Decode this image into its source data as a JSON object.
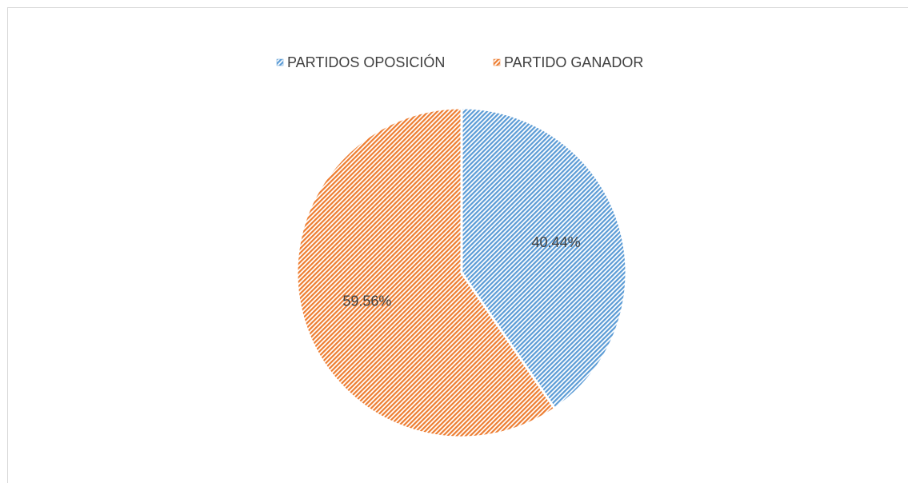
{
  "chart_data": {
    "type": "pie",
    "categories": [
      "PARTIDOS OPOSICIÓN",
      "PARTIDO GANADOR"
    ],
    "values": [
      40.44,
      59.56
    ],
    "value_labels": [
      "40.44%",
      "59.56%"
    ],
    "colors": [
      "#5b9bd5",
      "#ed7d31"
    ],
    "legend": "top"
  }
}
